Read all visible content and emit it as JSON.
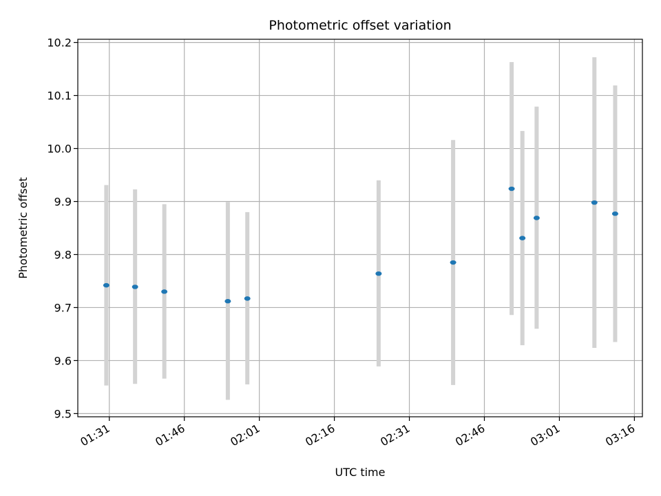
{
  "chart_data": {
    "type": "scatter",
    "title": "Photometric offset variation",
    "xlabel": "UTC time",
    "ylabel": "Photometric offset",
    "x_ticks": [
      "01:31",
      "01:46",
      "02:01",
      "02:16",
      "02:31",
      "02:46",
      "03:01",
      "03:16"
    ],
    "y_ticks": [
      "9.5",
      "9.6",
      "9.7",
      "9.8",
      "9.9",
      "10.0",
      "10.1",
      "10.2"
    ],
    "xlim": [
      "01:24:42",
      "03:17:36"
    ],
    "ylim": [
      9.494,
      10.206
    ],
    "grid": true,
    "marker_color": "#1f77b4",
    "errorbar_color": "#d3d3d3",
    "points": [
      {
        "time": "01:30:24",
        "value": 9.742,
        "err_low": 9.553,
        "err_high": 9.931
      },
      {
        "time": "01:36:09",
        "value": 9.739,
        "err_low": 9.556,
        "err_high": 9.923
      },
      {
        "time": "01:42:00",
        "value": 9.73,
        "err_low": 9.566,
        "err_high": 9.895
      },
      {
        "time": "01:54:42",
        "value": 9.712,
        "err_low": 9.526,
        "err_high": 9.899
      },
      {
        "time": "01:58:36",
        "value": 9.717,
        "err_low": 9.555,
        "err_high": 9.88
      },
      {
        "time": "02:24:51",
        "value": 9.764,
        "err_low": 9.589,
        "err_high": 9.94
      },
      {
        "time": "02:39:45",
        "value": 9.785,
        "err_low": 9.554,
        "err_high": 10.016
      },
      {
        "time": "02:51:27",
        "value": 9.924,
        "err_low": 9.686,
        "err_high": 10.163
      },
      {
        "time": "02:53:36",
        "value": 9.831,
        "err_low": 9.629,
        "err_high": 10.033
      },
      {
        "time": "02:56:27",
        "value": 9.869,
        "err_low": 9.66,
        "err_high": 10.079
      },
      {
        "time": "03:08:00",
        "value": 9.898,
        "err_low": 9.624,
        "err_high": 10.172
      },
      {
        "time": "03:12:09",
        "value": 9.877,
        "err_low": 9.635,
        "err_high": 10.119
      }
    ]
  }
}
